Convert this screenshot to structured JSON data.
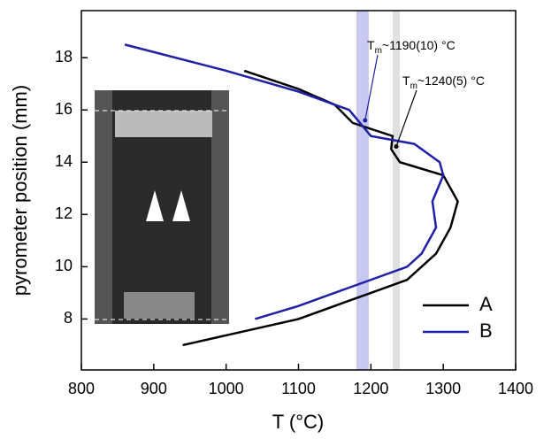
{
  "chart_data": {
    "type": "line",
    "xlabel": "T (°C)",
    "ylabel": "pyrometer position (mm)",
    "xlim": [
      800,
      1400
    ],
    "xticks": [
      800,
      900,
      1000,
      1100,
      1200,
      1300,
      1400
    ],
    "ylim": [
      6.05,
      19.8
    ],
    "yticks": [
      8,
      10,
      12,
      14,
      16,
      18
    ],
    "legend": "lower right",
    "bands": [
      {
        "x": [
          1180,
          1197
        ],
        "color": "#c8c8f0"
      },
      {
        "x": [
          1230,
          1240
        ],
        "color": "#e0e0e0"
      }
    ],
    "annotations": [
      {
        "symbol": "T",
        "sub": "m",
        "text": "~1190(10) °C",
        "x": 1192,
        "y": 15.6
      },
      {
        "symbol": "T",
        "sub": "m",
        "text": "~1240(5) °C",
        "x": 1235,
        "y": 14.6
      }
    ],
    "series": [
      {
        "name": "A",
        "color": "#000000",
        "x": [
          1025,
          1100,
          1150,
          1175,
          1230,
          1228,
          1240,
          1300,
          1320,
          1310,
          1290,
          1250,
          1200,
          1100,
          940
        ],
        "values": [
          17.5,
          16.8,
          16.2,
          15.5,
          15,
          14.5,
          14,
          13.5,
          12.5,
          11.5,
          10.5,
          9.5,
          9,
          8,
          7
        ]
      },
      {
        "name": "B",
        "color": "#1f1fa8",
        "x": [
          860,
          1000,
          1100,
          1170,
          1185,
          1200,
          1260,
          1295,
          1300,
          1285,
          1290,
          1270,
          1250,
          1200,
          1100,
          1040
        ],
        "values": [
          18.5,
          17.5,
          16.7,
          16,
          15.5,
          15,
          14.7,
          14,
          13.5,
          12.5,
          11.5,
          10.5,
          10,
          9.5,
          8.5,
          8
        ]
      }
    ]
  }
}
